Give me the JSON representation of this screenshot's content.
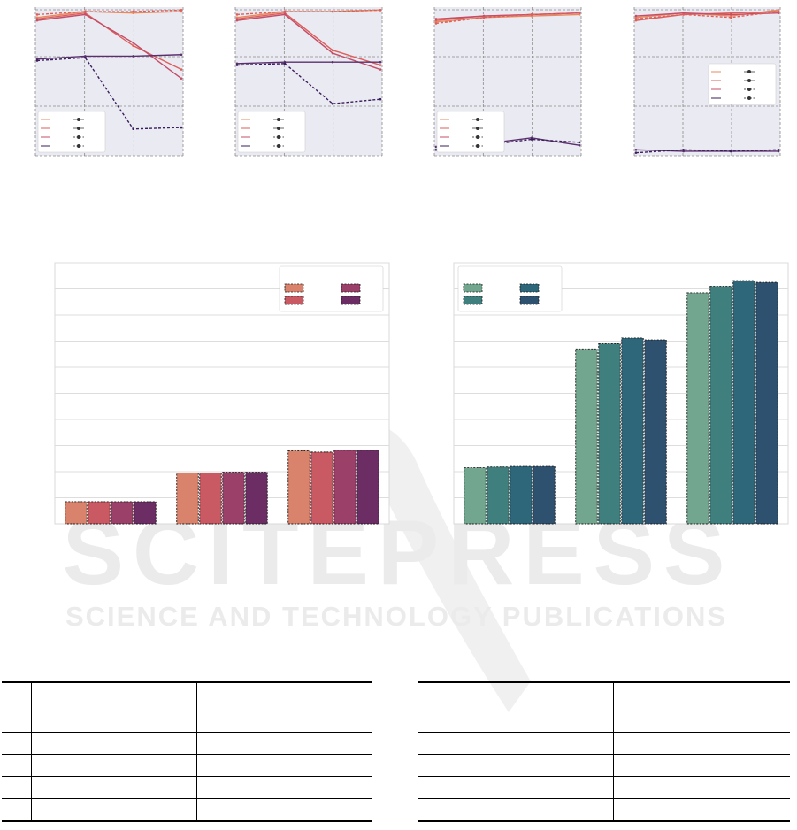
{
  "page": {
    "watermark": "SCITEPRESS",
    "watermark_sub": "SCIENCE AND TECHNOLOGY PUBLICATIONS"
  },
  "colors": {
    "grid_bg": "#eaeaf2",
    "grid_line": "#8a8a8a",
    "magma": [
      "#e8895d",
      "#de5f59",
      "#c44d68",
      "#5a2f6e",
      "#3b1d5c"
    ],
    "magma_bars": [
      "#d9836c",
      "#c95962",
      "#9b4068",
      "#6b2d63"
    ],
    "crest_bars": [
      "#72a68e",
      "#3f7f7d",
      "#2e667a",
      "#2f5170"
    ]
  },
  "chart_data": [
    {
      "type": "line",
      "panel": "top-1",
      "x": [
        0,
        1,
        2,
        3
      ],
      "ylim": [
        0,
        1
      ],
      "grid": true,
      "legend": "lower-left",
      "series": [
        {
          "values": [
            0.93,
            0.97,
            0.96,
            0.97
          ]
        },
        {
          "values": [
            0.92,
            0.96,
            0.74,
            0.58
          ]
        },
        {
          "values": [
            0.91,
            0.95,
            0.76,
            0.52
          ]
        },
        {
          "values": [
            0.95,
            0.97,
            0.97,
            0.98
          ]
        },
        {
          "values": [
            0.65,
            0.67,
            0.67,
            0.68
          ]
        },
        {
          "values": [
            0.64,
            0.66,
            0.18,
            0.19
          ]
        }
      ]
    },
    {
      "type": "line",
      "panel": "top-2",
      "x": [
        0,
        1,
        2,
        3
      ],
      "ylim": [
        0,
        1
      ],
      "grid": true,
      "legend": "lower-left",
      "series": [
        {
          "values": [
            0.93,
            0.97,
            0.97,
            0.98
          ]
        },
        {
          "values": [
            0.92,
            0.96,
            0.71,
            0.61
          ]
        },
        {
          "values": [
            0.91,
            0.95,
            0.69,
            0.58
          ]
        },
        {
          "values": [
            0.95,
            0.97,
            0.97,
            0.98
          ]
        },
        {
          "values": [
            0.62,
            0.63,
            0.63,
            0.63
          ]
        },
        {
          "values": [
            0.61,
            0.62,
            0.35,
            0.38
          ]
        }
      ]
    },
    {
      "type": "line",
      "panel": "top-3",
      "x": [
        0,
        1,
        2,
        3
      ],
      "ylim": [
        0,
        1
      ],
      "grid": true,
      "legend": "lower-left",
      "series": [
        {
          "values": [
            0.9,
            0.93,
            0.94,
            0.95
          ]
        },
        {
          "values": [
            0.91,
            0.94,
            0.95,
            0.96
          ]
        },
        {
          "values": [
            0.92,
            0.94,
            0.95,
            0.96
          ]
        },
        {
          "values": [
            0.89,
            0.93,
            0.95,
            0.96
          ]
        },
        {
          "values": [
            0.06,
            0.08,
            0.12,
            0.07
          ]
        },
        {
          "values": [
            0.04,
            0.07,
            0.11,
            0.09
          ]
        }
      ]
    },
    {
      "type": "line",
      "panel": "top-4",
      "x": [
        0,
        1,
        2,
        3
      ],
      "ylim": [
        0,
        1
      ],
      "grid": true,
      "legend": "center-right",
      "series": [
        {
          "values": [
            0.93,
            0.96,
            0.94,
            0.98
          ]
        },
        {
          "values": [
            0.91,
            0.95,
            0.96,
            0.97
          ]
        },
        {
          "values": [
            0.94,
            0.96,
            0.95,
            0.96
          ]
        },
        {
          "values": [
            0.92,
            0.95,
            0.93,
            0.97
          ]
        },
        {
          "values": [
            0.04,
            0.03,
            0.03,
            0.03
          ]
        },
        {
          "values": [
            0.02,
            0.04,
            0.03,
            0.04
          ]
        }
      ]
    },
    {
      "type": "bar",
      "panel": "bottom-left",
      "ylim": [
        0,
        10
      ],
      "grid": true,
      "legend": "top-right",
      "groups": 3,
      "series": [
        {
          "values": [
            0.85,
            1.95,
            2.8
          ]
        },
        {
          "values": [
            0.85,
            1.95,
            2.75
          ]
        },
        {
          "values": [
            0.85,
            1.98,
            2.82
          ]
        },
        {
          "values": [
            0.85,
            1.98,
            2.82
          ]
        }
      ]
    },
    {
      "type": "bar",
      "panel": "bottom-right",
      "ylim": [
        0,
        10
      ],
      "grid": true,
      "legend": "top-left",
      "groups": 3,
      "series": [
        {
          "values": [
            2.15,
            6.7,
            8.85
          ]
        },
        {
          "values": [
            2.18,
            6.9,
            9.1
          ]
        },
        {
          "values": [
            2.2,
            7.12,
            9.32
          ]
        },
        {
          "values": [
            2.2,
            7.05,
            9.25
          ]
        }
      ]
    }
  ],
  "tables": [
    {
      "rows": 4
    },
    {
      "rows": 4
    }
  ]
}
